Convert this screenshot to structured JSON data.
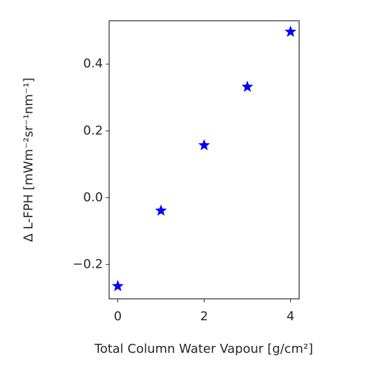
{
  "chart_data": {
    "type": "scatter",
    "marker": "star",
    "color": "#0000ff",
    "x": [
      0,
      1,
      2,
      3,
      4
    ],
    "values": [
      -0.265,
      -0.039,
      0.157,
      0.332,
      0.497
    ],
    "xlabel": "Total Column Water Vapour [g/cm²]",
    "ylabel": "Δ L-FPH [mWm⁻²sr⁻¹nm⁻¹]",
    "xlim": [
      -0.2,
      4.2
    ],
    "xticks": [
      0,
      2,
      4
    ],
    "ylim": [
      -0.303,
      0.53
    ],
    "yticks": [
      {
        "value": -0.2,
        "label": "−0.2"
      },
      {
        "value": 0.0,
        "label": "0.0"
      },
      {
        "value": 0.2,
        "label": "0.2"
      },
      {
        "value": 0.4,
        "label": "0.4"
      }
    ],
    "grid": false
  }
}
